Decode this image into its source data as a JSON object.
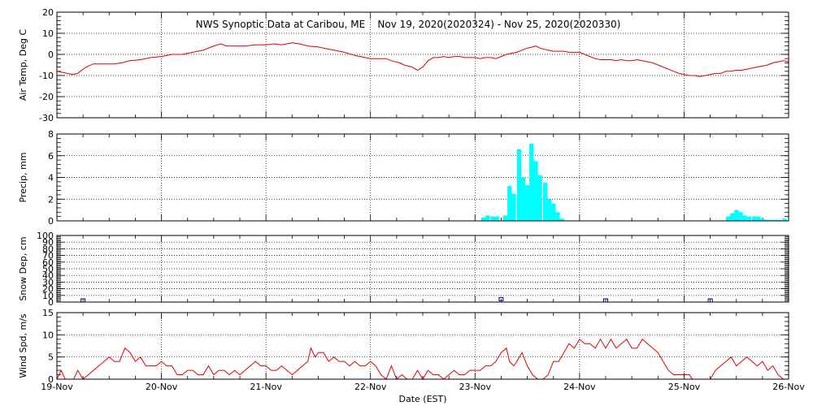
{
  "chart_data": {
    "type": "line",
    "title": "NWS Synoptic Data at Caribou, ME    Nov 19, 2020(2020324) - Nov 25, 2020(2020330)",
    "xlabel": "Date (EST)",
    "x_ticks": [
      "19-Nov",
      "20-Nov",
      "21-Nov",
      "22-Nov",
      "23-Nov",
      "24-Nov",
      "25-Nov",
      "26-Nov"
    ],
    "x_range_days": [
      0,
      7
    ],
    "grid": "dotted, at day boundaries and labeled y ticks",
    "panels": [
      {
        "id": "air_temp",
        "type": "line",
        "ylabel": "Air Temp, Deg C",
        "ylim": [
          -30,
          20
        ],
        "yticks": [
          -30,
          -20,
          -10,
          0,
          10,
          20
        ],
        "color": "#dd0000",
        "points": [
          [
            0.0,
            -8
          ],
          [
            0.05,
            -8.5
          ],
          [
            0.1,
            -9
          ],
          [
            0.15,
            -9.5
          ],
          [
            0.2,
            -9
          ],
          [
            0.25,
            -7
          ],
          [
            0.3,
            -5.5
          ],
          [
            0.35,
            -4.5
          ],
          [
            0.45,
            -4.5
          ],
          [
            0.55,
            -4.5
          ],
          [
            0.62,
            -4
          ],
          [
            0.7,
            -3
          ],
          [
            0.8,
            -2.5
          ],
          [
            0.9,
            -1.5
          ],
          [
            1.0,
            -1
          ],
          [
            1.1,
            0
          ],
          [
            1.2,
            0
          ],
          [
            1.3,
            1
          ],
          [
            1.4,
            2
          ],
          [
            1.5,
            4
          ],
          [
            1.57,
            5
          ],
          [
            1.62,
            4
          ],
          [
            1.7,
            4
          ],
          [
            1.8,
            4
          ],
          [
            1.9,
            4.5
          ],
          [
            2.0,
            4.5
          ],
          [
            2.08,
            5
          ],
          [
            2.15,
            4.5
          ],
          [
            2.2,
            5
          ],
          [
            2.25,
            5.5
          ],
          [
            2.32,
            5
          ],
          [
            2.4,
            4
          ],
          [
            2.5,
            3.5
          ],
          [
            2.55,
            3
          ],
          [
            2.65,
            2
          ],
          [
            2.75,
            1
          ],
          [
            2.85,
            -0.5
          ],
          [
            2.95,
            -1.5
          ],
          [
            3.0,
            -2
          ],
          [
            3.05,
            -2
          ],
          [
            3.1,
            -2
          ],
          [
            3.15,
            -2
          ],
          [
            3.2,
            -3
          ],
          [
            3.28,
            -4
          ],
          [
            3.32,
            -5
          ],
          [
            3.4,
            -6
          ],
          [
            3.45,
            -7.5
          ],
          [
            3.5,
            -6
          ],
          [
            3.55,
            -3
          ],
          [
            3.6,
            -1.5
          ],
          [
            3.65,
            -1.5
          ],
          [
            3.7,
            -1
          ],
          [
            3.75,
            -1.5
          ],
          [
            3.8,
            -1
          ],
          [
            3.85,
            -1
          ],
          [
            3.9,
            -1.5
          ],
          [
            3.95,
            -1.5
          ],
          [
            4.0,
            -1.5
          ],
          [
            4.05,
            -2
          ],
          [
            4.1,
            -1.5
          ],
          [
            4.15,
            -1.5
          ],
          [
            4.2,
            -2
          ],
          [
            4.25,
            -1
          ],
          [
            4.3,
            0
          ],
          [
            4.4,
            1
          ],
          [
            4.45,
            2
          ],
          [
            4.5,
            3
          ],
          [
            4.55,
            3.5
          ],
          [
            4.58,
            4
          ],
          [
            4.62,
            3
          ],
          [
            4.7,
            2
          ],
          [
            4.75,
            1.5
          ],
          [
            4.8,
            1.5
          ],
          [
            4.85,
            1.5
          ],
          [
            4.9,
            1
          ],
          [
            4.95,
            1
          ],
          [
            5.0,
            1
          ],
          [
            5.05,
            0
          ],
          [
            5.1,
            -1
          ],
          [
            5.15,
            -2
          ],
          [
            5.2,
            -2.5
          ],
          [
            5.25,
            -2.5
          ],
          [
            5.3,
            -2.5
          ],
          [
            5.35,
            -3
          ],
          [
            5.4,
            -2.5
          ],
          [
            5.45,
            -3
          ],
          [
            5.5,
            -3
          ],
          [
            5.55,
            -2.5
          ],
          [
            5.6,
            -3
          ],
          [
            5.65,
            -3.5
          ],
          [
            5.7,
            -4
          ],
          [
            5.75,
            -5
          ],
          [
            5.8,
            -6
          ],
          [
            5.85,
            -7
          ],
          [
            5.9,
            -8
          ],
          [
            5.95,
            -9
          ],
          [
            6.0,
            -9.5
          ],
          [
            6.05,
            -10
          ],
          [
            6.1,
            -10
          ],
          [
            6.15,
            -10.5
          ],
          [
            6.2,
            -10
          ],
          [
            6.25,
            -9.5
          ],
          [
            6.3,
            -9
          ],
          [
            6.35,
            -9
          ],
          [
            6.4,
            -8
          ],
          [
            6.45,
            -8
          ],
          [
            6.5,
            -7.5
          ],
          [
            6.55,
            -7.5
          ],
          [
            6.6,
            -7
          ],
          [
            6.65,
            -6.5
          ],
          [
            6.7,
            -6
          ],
          [
            6.75,
            -5.5
          ],
          [
            6.8,
            -5
          ],
          [
            6.85,
            -4
          ],
          [
            6.9,
            -3.5
          ],
          [
            6.95,
            -3
          ],
          [
            7.0,
            -3.5
          ]
        ]
      },
      {
        "id": "precip",
        "type": "bar",
        "ylabel": "Precip, mm",
        "ylim": [
          0,
          8
        ],
        "yticks": [
          0,
          2,
          4,
          6,
          8
        ],
        "color": "#00ffff",
        "bar_width_days": 0.0417,
        "bars": [
          [
            4.06,
            0.3
          ],
          [
            4.1,
            0.5
          ],
          [
            4.15,
            0.4
          ],
          [
            4.19,
            0.4
          ],
          [
            4.23,
            0
          ],
          [
            4.27,
            0.5
          ],
          [
            4.31,
            3.2
          ],
          [
            4.35,
            2.5
          ],
          [
            4.4,
            6.6
          ],
          [
            4.44,
            4.0
          ],
          [
            4.48,
            3.3
          ],
          [
            4.52,
            7.1
          ],
          [
            4.56,
            5.5
          ],
          [
            4.6,
            4.2
          ],
          [
            4.65,
            3.5
          ],
          [
            4.69,
            2.0
          ],
          [
            4.73,
            1.6
          ],
          [
            4.77,
            0.8
          ],
          [
            4.81,
            0.2
          ],
          [
            6.4,
            0.4
          ],
          [
            6.44,
            0.7
          ],
          [
            6.48,
            1.0
          ],
          [
            6.52,
            0.8
          ],
          [
            6.56,
            0.5
          ],
          [
            6.6,
            0.4
          ],
          [
            6.65,
            0.4
          ],
          [
            6.69,
            0.4
          ],
          [
            6.73,
            0.2
          ],
          [
            6.77,
            0.1
          ],
          [
            6.81,
            0.1
          ],
          [
            6.85,
            0.1
          ],
          [
            6.89,
            0.1
          ],
          [
            6.94,
            0.2
          ]
        ]
      },
      {
        "id": "snow_depth",
        "type": "scatter",
        "ylabel": "Snow Dep, cm",
        "ylim": [
          0,
          100
        ],
        "yticks": [
          0,
          10,
          20,
          30,
          40,
          50,
          60,
          70,
          80,
          90,
          100
        ],
        "color": "#000080",
        "points": [
          [
            0.25,
            0
          ],
          [
            4.25,
            2
          ],
          [
            5.25,
            0
          ],
          [
            6.25,
            0
          ]
        ]
      },
      {
        "id": "wind_speed",
        "type": "line",
        "ylabel": "Wind Spd, m/s",
        "ylim": [
          0,
          15
        ],
        "yticks": [
          0,
          5,
          10,
          15
        ],
        "color": "#dd0000",
        "points": [
          [
            0.0,
            0
          ],
          [
            0.04,
            2
          ],
          [
            0.08,
            0
          ],
          [
            0.12,
            0
          ],
          [
            0.16,
            0
          ],
          [
            0.2,
            2
          ],
          [
            0.25,
            0
          ],
          [
            0.3,
            1
          ],
          [
            0.35,
            2
          ],
          [
            0.4,
            3
          ],
          [
            0.45,
            4
          ],
          [
            0.5,
            5
          ],
          [
            0.55,
            4
          ],
          [
            0.6,
            4
          ],
          [
            0.65,
            7
          ],
          [
            0.7,
            6
          ],
          [
            0.75,
            4
          ],
          [
            0.8,
            5
          ],
          [
            0.85,
            3
          ],
          [
            0.9,
            3
          ],
          [
            0.95,
            3
          ],
          [
            1.0,
            4
          ],
          [
            1.05,
            3
          ],
          [
            1.1,
            3
          ],
          [
            1.15,
            1
          ],
          [
            1.2,
            1
          ],
          [
            1.25,
            2
          ],
          [
            1.3,
            2
          ],
          [
            1.35,
            1
          ],
          [
            1.4,
            1
          ],
          [
            1.45,
            3
          ],
          [
            1.5,
            1
          ],
          [
            1.55,
            2
          ],
          [
            1.6,
            2
          ],
          [
            1.65,
            1
          ],
          [
            1.7,
            2
          ],
          [
            1.75,
            1
          ],
          [
            1.8,
            2
          ],
          [
            1.85,
            3
          ],
          [
            1.9,
            4
          ],
          [
            1.95,
            3
          ],
          [
            2.0,
            3
          ],
          [
            2.05,
            2
          ],
          [
            2.1,
            2
          ],
          [
            2.15,
            3
          ],
          [
            2.2,
            2
          ],
          [
            2.25,
            1
          ],
          [
            2.3,
            2
          ],
          [
            2.35,
            3
          ],
          [
            2.4,
            4
          ],
          [
            2.43,
            7
          ],
          [
            2.47,
            5
          ],
          [
            2.5,
            6
          ],
          [
            2.55,
            6
          ],
          [
            2.6,
            4
          ],
          [
            2.65,
            5
          ],
          [
            2.7,
            4
          ],
          [
            2.75,
            4
          ],
          [
            2.8,
            3
          ],
          [
            2.85,
            4
          ],
          [
            2.9,
            3
          ],
          [
            2.95,
            3
          ],
          [
            3.0,
            4
          ],
          [
            3.05,
            3
          ],
          [
            3.1,
            1
          ],
          [
            3.15,
            0
          ],
          [
            3.2,
            3
          ],
          [
            3.25,
            0
          ],
          [
            3.3,
            1
          ],
          [
            3.35,
            0
          ],
          [
            3.4,
            0
          ],
          [
            3.45,
            2
          ],
          [
            3.5,
            0
          ],
          [
            3.55,
            2
          ],
          [
            3.6,
            1
          ],
          [
            3.65,
            1
          ],
          [
            3.7,
            0
          ],
          [
            3.75,
            1
          ],
          [
            3.8,
            2
          ],
          [
            3.85,
            1
          ],
          [
            3.9,
            1
          ],
          [
            3.95,
            2
          ],
          [
            4.0,
            2
          ],
          [
            4.05,
            2
          ],
          [
            4.1,
            3
          ],
          [
            4.15,
            3
          ],
          [
            4.2,
            4
          ],
          [
            4.25,
            6
          ],
          [
            4.3,
            7
          ],
          [
            4.33,
            4
          ],
          [
            4.37,
            3
          ],
          [
            4.4,
            4
          ],
          [
            4.45,
            6
          ],
          [
            4.5,
            3
          ],
          [
            4.55,
            1
          ],
          [
            4.6,
            0
          ],
          [
            4.65,
            0
          ],
          [
            4.7,
            1
          ],
          [
            4.75,
            4
          ],
          [
            4.8,
            4
          ],
          [
            4.85,
            6
          ],
          [
            4.9,
            8
          ],
          [
            4.95,
            7
          ],
          [
            5.0,
            9
          ],
          [
            5.05,
            8
          ],
          [
            5.1,
            8
          ],
          [
            5.15,
            7
          ],
          [
            5.2,
            9
          ],
          [
            5.25,
            7
          ],
          [
            5.3,
            9
          ],
          [
            5.35,
            7
          ],
          [
            5.4,
            8
          ],
          [
            5.45,
            9
          ],
          [
            5.5,
            7
          ],
          [
            5.55,
            7
          ],
          [
            5.6,
            9
          ],
          [
            5.65,
            8
          ],
          [
            5.7,
            7
          ],
          [
            5.75,
            6
          ],
          [
            5.8,
            4
          ],
          [
            5.85,
            2
          ],
          [
            5.9,
            1
          ],
          [
            5.95,
            1
          ],
          [
            6.0,
            1
          ],
          [
            6.05,
            1
          ],
          [
            6.08,
            0
          ],
          [
            6.15,
            0
          ],
          [
            6.2,
            0
          ],
          [
            6.25,
            0
          ],
          [
            6.3,
            2
          ],
          [
            6.35,
            3
          ],
          [
            6.4,
            4
          ],
          [
            6.45,
            5
          ],
          [
            6.5,
            3
          ],
          [
            6.55,
            4
          ],
          [
            6.6,
            5
          ],
          [
            6.65,
            4
          ],
          [
            6.7,
            3
          ],
          [
            6.75,
            4
          ],
          [
            6.8,
            2
          ],
          [
            6.85,
            3
          ],
          [
            6.9,
            1
          ],
          [
            6.95,
            0
          ],
          [
            7.0,
            0
          ]
        ]
      }
    ]
  }
}
